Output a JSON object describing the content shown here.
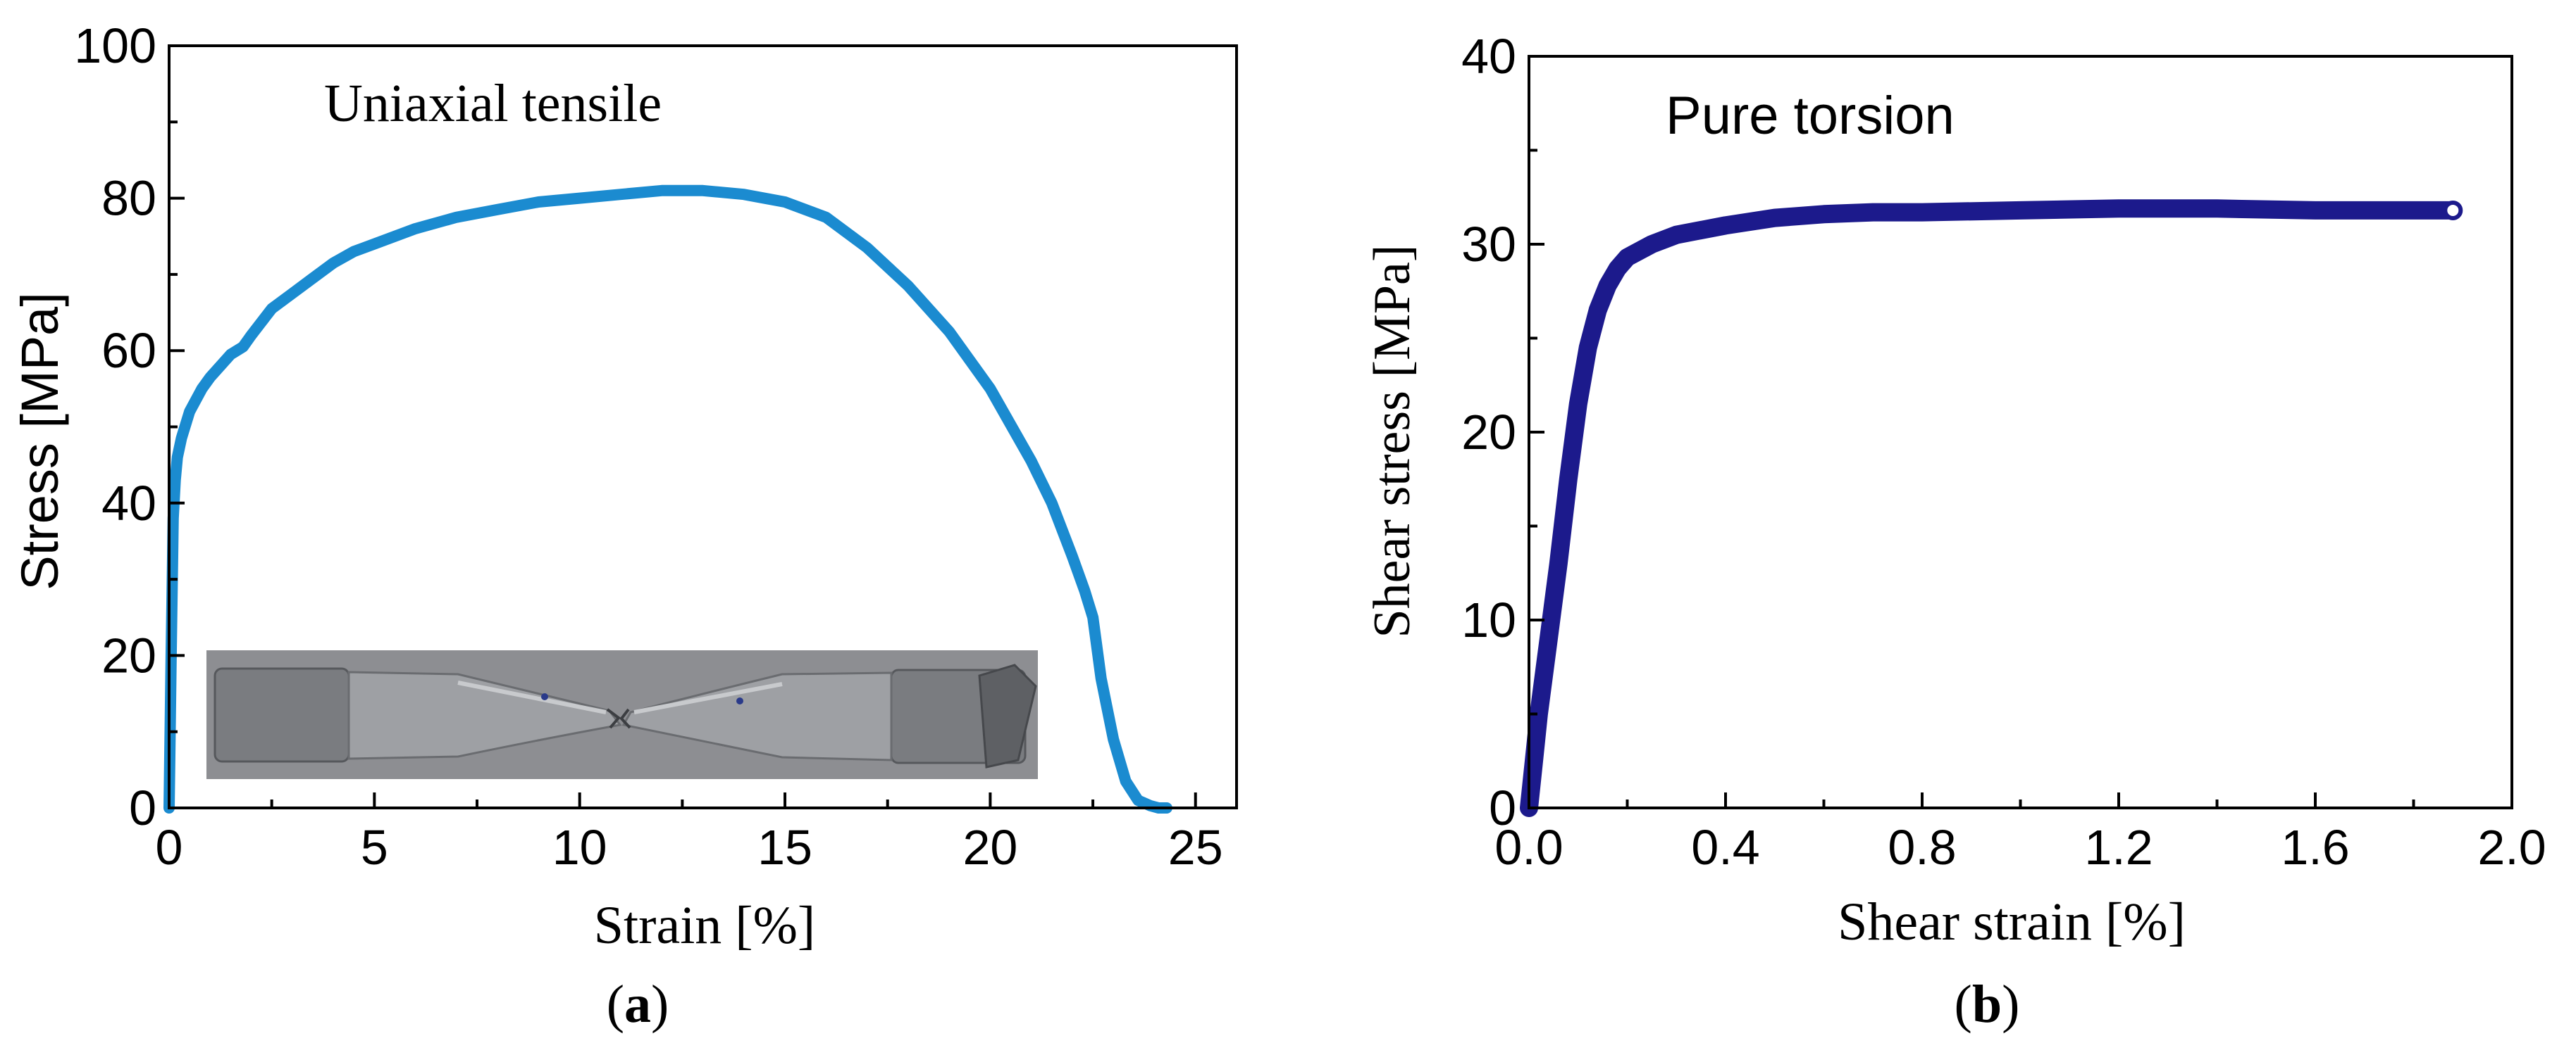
{
  "colors": {
    "tensile_curve": "#1b8bd0",
    "torsion_curve": "#1c1a8c",
    "axis": "#000000",
    "background": "#ffffff"
  },
  "chart_data": [
    {
      "type": "line",
      "panel_label": "a",
      "annotation": "Uniaxial tensile",
      "xlabel": "Strain [%]",
      "ylabel": "Stress [MPa]",
      "xlim": [
        0,
        26
      ],
      "ylim": [
        0,
        100
      ],
      "xticks": [
        0,
        5,
        10,
        15,
        20,
        25
      ],
      "yticks": [
        0,
        20,
        40,
        60,
        80,
        100
      ],
      "xtick_labels": [
        "0",
        "5",
        "10",
        "15",
        "20",
        "25"
      ],
      "ytick_labels": [
        "0",
        "20",
        "40",
        "60",
        "80",
        "100"
      ],
      "grid": false,
      "inset": "photo of fractured tensile specimen (bottom-left)",
      "series": [
        {
          "x": [
            0,
            0.05,
            0.1,
            0.15,
            0.2,
            0.3,
            0.5,
            0.8,
            1.0,
            1.5,
            1.8,
            2.0,
            2.5,
            3.0,
            3.5,
            4.0,
            4.5,
            5.0,
            6.0,
            7.0,
            8.0,
            9.0,
            10.0,
            11.0,
            12.0,
            13.0,
            14.0,
            15.0,
            16.0,
            17.0,
            18.0,
            19.0,
            20.0,
            21.0,
            21.5,
            22.0,
            22.3,
            22.5,
            22.7,
            23.0,
            23.3,
            23.6,
            23.9,
            24.1,
            24.3
          ],
          "y": [
            0,
            20,
            38,
            43,
            46,
            48.5,
            52,
            55,
            56.5,
            59.5,
            60.5,
            62,
            65.5,
            67.5,
            69.5,
            71.5,
            73,
            74,
            76,
            77.5,
            78.5,
            79.5,
            80,
            80.5,
            81,
            81,
            80.5,
            79.5,
            77.5,
            73.5,
            68.5,
            62.5,
            55,
            45.5,
            40,
            33,
            28.5,
            25,
            17,
            9,
            3.5,
            1,
            0.3,
            0,
            0
          ]
        }
      ]
    },
    {
      "type": "line",
      "panel_label": "b",
      "annotation": "Pure torsion",
      "xlabel": "Shear strain [%]",
      "ylabel": "Shear stress [MPa]",
      "xlim": [
        0,
        2.0
      ],
      "ylim": [
        0,
        40
      ],
      "xticks": [
        0.0,
        0.4,
        0.8,
        1.2,
        1.6,
        2.0
      ],
      "yticks": [
        0,
        10,
        20,
        30,
        40
      ],
      "xtick_labels": [
        "0.0",
        "0.4",
        "0.8",
        "1.2",
        "1.6",
        "2.0"
      ],
      "ytick_labels": [
        "0",
        "10",
        "20",
        "30",
        "40"
      ],
      "grid": false,
      "series": [
        {
          "x": [
            0,
            0.01,
            0.02,
            0.04,
            0.06,
            0.08,
            0.1,
            0.12,
            0.14,
            0.16,
            0.18,
            0.2,
            0.25,
            0.3,
            0.4,
            0.5,
            0.6,
            0.7,
            0.8,
            1.0,
            1.2,
            1.4,
            1.6,
            1.8,
            1.88
          ],
          "y": [
            0,
            2.5,
            5,
            9,
            13,
            17.5,
            21.5,
            24.5,
            26.5,
            27.8,
            28.7,
            29.3,
            30,
            30.5,
            31,
            31.4,
            31.6,
            31.7,
            31.7,
            31.8,
            31.9,
            31.9,
            31.8,
            31.8,
            31.8
          ]
        }
      ]
    }
  ]
}
